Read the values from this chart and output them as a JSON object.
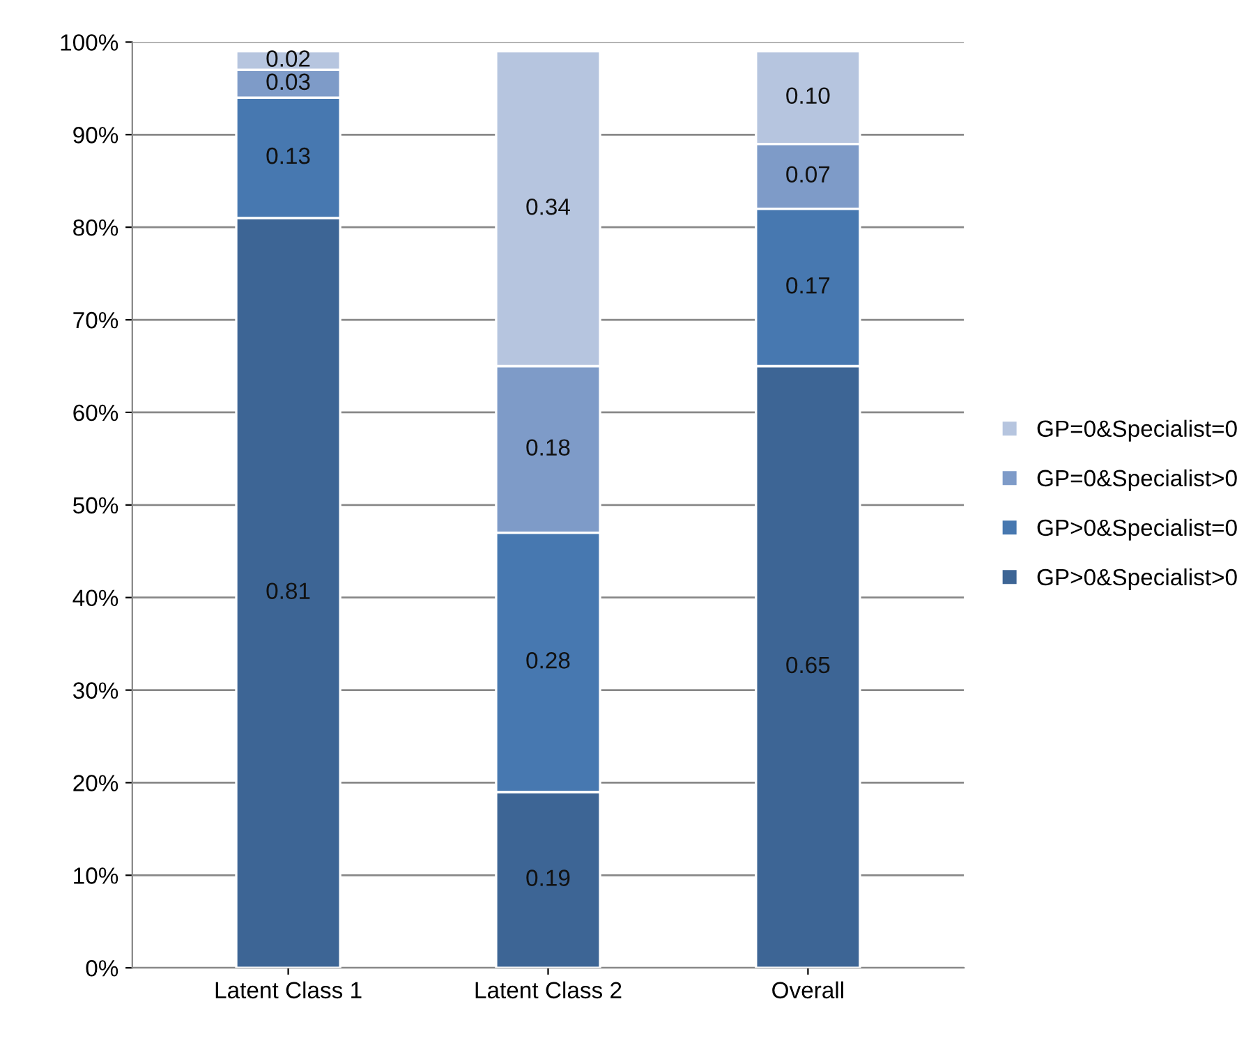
{
  "chart_data": {
    "type": "bar",
    "stacked": true,
    "categories": [
      "Latent Class 1",
      "Latent Class 2",
      "Overall"
    ],
    "series": [
      {
        "name": "GP>0&Specialist>0",
        "color": "#3d6595",
        "values": [
          0.81,
          0.19,
          0.65
        ],
        "value_labels": [
          "0.81",
          "0.19",
          "0.65"
        ]
      },
      {
        "name": "GP>0&Specialist=0",
        "color": "#4778b0",
        "values": [
          0.13,
          0.28,
          0.17
        ],
        "value_labels": [
          "0.13",
          "0.28",
          "0.17"
        ]
      },
      {
        "name": "GP=0&Specialist>0",
        "color": "#7e9bc8",
        "values": [
          0.03,
          0.18,
          0.07
        ],
        "value_labels": [
          "0.03",
          "0.18",
          "0.07"
        ]
      },
      {
        "name": "GP=0&Specialist=0",
        "color": "#b6c5df",
        "values": [
          0.02,
          0.34,
          0.1
        ],
        "value_labels": [
          "0.02",
          "0.34",
          "0.10"
        ]
      }
    ],
    "ylim": [
      0,
      1
    ],
    "yticks": [
      {
        "value": 0,
        "label": "0%"
      },
      {
        "value": 0.1,
        "label": "10%"
      },
      {
        "value": 0.2,
        "label": "20%"
      },
      {
        "value": 0.3,
        "label": "30%"
      },
      {
        "value": 0.4,
        "label": "40%"
      },
      {
        "value": 0.5,
        "label": "50%"
      },
      {
        "value": 0.6,
        "label": "60%"
      },
      {
        "value": 0.7,
        "label": "70%"
      },
      {
        "value": 0.8,
        "label": "80%"
      },
      {
        "value": 0.9,
        "label": "90%"
      },
      {
        "value": 1,
        "label": "100%"
      }
    ],
    "grid": "y",
    "legend": "right"
  }
}
